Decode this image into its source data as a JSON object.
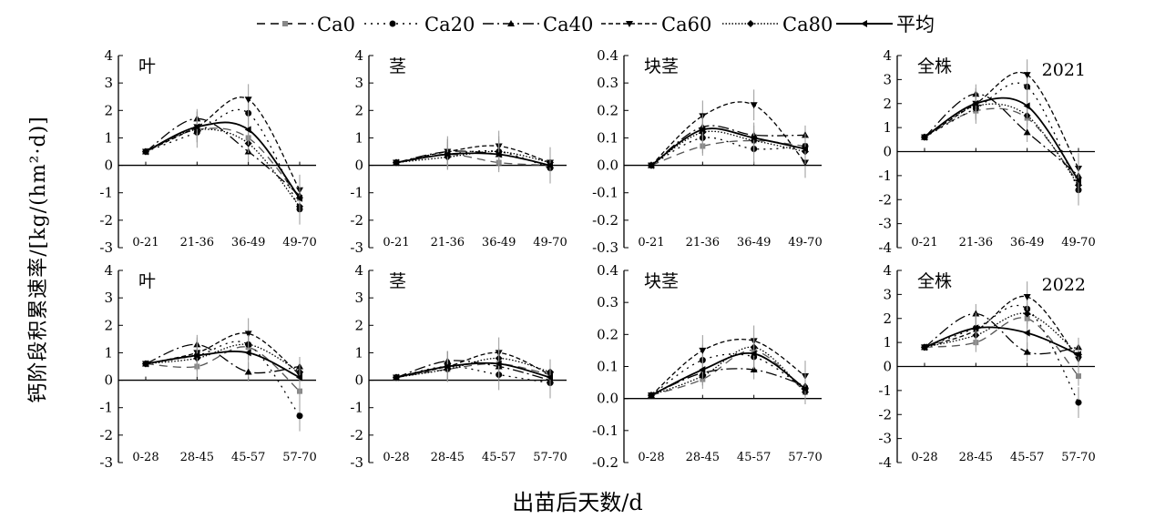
{
  "legend": {
    "items": [
      {
        "label": "Ca0",
        "dash": "9 6",
        "marker": "square",
        "color": "#888888"
      },
      {
        "label": "Ca20",
        "dash": "2 5",
        "marker": "circle",
        "color": "#000000"
      },
      {
        "label": "Ca40",
        "dash": "12 4 2 4",
        "marker": "triangle",
        "color": "#000000"
      },
      {
        "label": "Ca60",
        "dash": "5 3",
        "marker": "invtriangle",
        "color": "#000000"
      },
      {
        "label": "Ca80",
        "dash": "1.5 2",
        "marker": "diamond",
        "color": "#000000"
      },
      {
        "label": "平均",
        "dash": "",
        "marker": "lefttri",
        "color": "#000000"
      }
    ]
  },
  "ylabel": "钙阶段积累速率/[kg/(hm²·d)]",
  "xlabel": "出苗后天数/d",
  "chart_data": [
    {
      "type": "line",
      "year": "2021",
      "organ": "叶",
      "title": "叶",
      "ylim": [
        -3,
        4
      ],
      "yticks": [
        -3,
        -2,
        -1,
        0,
        1,
        2,
        3,
        4
      ],
      "categories": [
        "0-21",
        "21-36",
        "36-49",
        "49-70"
      ],
      "series": [
        {
          "name": "Ca0",
          "values": [
            0.5,
            1.3,
            1.0,
            -1.2
          ]
        },
        {
          "name": "Ca20",
          "values": [
            0.5,
            1.2,
            1.9,
            -1.6
          ]
        },
        {
          "name": "Ca40",
          "values": [
            0.5,
            1.7,
            0.5,
            -1.1
          ]
        },
        {
          "name": "Ca60",
          "values": [
            0.5,
            1.4,
            2.4,
            -0.9
          ]
        },
        {
          "name": "Ca80",
          "values": [
            0.5,
            1.3,
            0.8,
            -1.5
          ]
        },
        {
          "name": "平均",
          "values": [
            0.5,
            1.4,
            1.3,
            -1.2
          ]
        }
      ]
    },
    {
      "type": "line",
      "year": "2021",
      "organ": "茎",
      "title": "茎",
      "ylim": [
        -3,
        4
      ],
      "yticks": [
        -3,
        -2,
        -1,
        0,
        1,
        2,
        3,
        4
      ],
      "categories": [
        "0-21",
        "21-36",
        "36-49",
        "49-70"
      ],
      "series": [
        {
          "name": "Ca0",
          "values": [
            0.1,
            0.4,
            0.1,
            0.0
          ]
        },
        {
          "name": "Ca20",
          "values": [
            0.1,
            0.4,
            0.5,
            -0.1
          ]
        },
        {
          "name": "Ca40",
          "values": [
            0.1,
            0.5,
            0.4,
            0.0
          ]
        },
        {
          "name": "Ca60",
          "values": [
            0.1,
            0.5,
            0.7,
            0.1
          ]
        },
        {
          "name": "Ca80",
          "values": [
            0.1,
            0.3,
            0.5,
            0.1
          ]
        },
        {
          "name": "平均",
          "values": [
            0.1,
            0.4,
            0.4,
            0.0
          ]
        }
      ]
    },
    {
      "type": "line",
      "year": "2021",
      "organ": "块茎",
      "title": "块茎",
      "ylim": [
        -0.3,
        0.4
      ],
      "yticks": [
        -0.3,
        -0.2,
        -0.1,
        0.0,
        0.1,
        0.2,
        0.3,
        0.4
      ],
      "categories": [
        "0-21",
        "21-36",
        "36-49",
        "49-70"
      ],
      "series": [
        {
          "name": "Ca0",
          "values": [
            0.0,
            0.07,
            0.09,
            0.07
          ]
        },
        {
          "name": "Ca20",
          "values": [
            0.0,
            0.1,
            0.06,
            0.07
          ]
        },
        {
          "name": "Ca40",
          "values": [
            0.0,
            0.14,
            0.11,
            0.11
          ]
        },
        {
          "name": "Ca60",
          "values": [
            0.0,
            0.18,
            0.22,
            0.01
          ]
        },
        {
          "name": "Ca80",
          "values": [
            0.0,
            0.12,
            0.09,
            0.05
          ]
        },
        {
          "name": "平均",
          "values": [
            0.0,
            0.13,
            0.1,
            0.06
          ]
        }
      ]
    },
    {
      "type": "line",
      "year": "2021",
      "organ": "全株",
      "title": "全株",
      "ylim": [
        -4,
        4
      ],
      "yticks": [
        -4,
        -3,
        -2,
        -1,
        0,
        1,
        2,
        3,
        4
      ],
      "categories": [
        "0-21",
        "21-36",
        "36-49",
        "49-70"
      ],
      "series": [
        {
          "name": "Ca0",
          "values": [
            0.6,
            1.7,
            1.4,
            -1.3
          ]
        },
        {
          "name": "Ca20",
          "values": [
            0.6,
            1.8,
            2.7,
            -1.6
          ]
        },
        {
          "name": "Ca40",
          "values": [
            0.6,
            2.4,
            0.8,
            -1.0
          ]
        },
        {
          "name": "Ca60",
          "values": [
            0.6,
            2.0,
            3.2,
            -0.7
          ]
        },
        {
          "name": "Ca80",
          "values": [
            0.6,
            1.9,
            1.5,
            -1.4
          ]
        },
        {
          "name": "平均",
          "values": [
            0.6,
            2.0,
            1.9,
            -1.2
          ]
        }
      ],
      "annotation": "2021"
    },
    {
      "type": "line",
      "year": "2022",
      "organ": "叶",
      "title": "叶",
      "ylim": [
        -3,
        4
      ],
      "yticks": [
        -3,
        -2,
        -1,
        0,
        1,
        2,
        3,
        4
      ],
      "categories": [
        "0-28",
        "28-45",
        "45-57",
        "57-70"
      ],
      "series": [
        {
          "name": "Ca0",
          "values": [
            0.6,
            0.5,
            1.2,
            -0.4
          ]
        },
        {
          "name": "Ca20",
          "values": [
            0.6,
            0.9,
            1.3,
            -1.3
          ]
        },
        {
          "name": "Ca40",
          "values": [
            0.6,
            1.3,
            0.3,
            0.5
          ]
        },
        {
          "name": "Ca60",
          "values": [
            0.6,
            1.0,
            1.7,
            0.2
          ]
        },
        {
          "name": "Ca80",
          "values": [
            0.6,
            0.8,
            1.3,
            0.3
          ]
        },
        {
          "name": "平均",
          "values": [
            0.6,
            0.9,
            1.0,
            0.1
          ]
        }
      ]
    },
    {
      "type": "line",
      "year": "2022",
      "organ": "茎",
      "title": "茎",
      "ylim": [
        -3,
        4
      ],
      "yticks": [
        -3,
        -2,
        -1,
        0,
        1,
        2,
        3,
        4
      ],
      "categories": [
        "0-28",
        "28-45",
        "45-57",
        "57-70"
      ],
      "series": [
        {
          "name": "Ca0",
          "values": [
            0.1,
            0.4,
            0.6,
            0.2
          ]
        },
        {
          "name": "Ca20",
          "values": [
            0.1,
            0.5,
            0.2,
            -0.1
          ]
        },
        {
          "name": "Ca40",
          "values": [
            0.1,
            0.7,
            0.5,
            0.0
          ]
        },
        {
          "name": "Ca60",
          "values": [
            0.1,
            0.5,
            1.0,
            0.2
          ]
        },
        {
          "name": "Ca80",
          "values": [
            0.1,
            0.4,
            0.8,
            0.3
          ]
        },
        {
          "name": "平均",
          "values": [
            0.1,
            0.5,
            0.6,
            0.1
          ]
        }
      ]
    },
    {
      "type": "line",
      "year": "2022",
      "organ": "块茎",
      "title": "块茎",
      "ylim": [
        -0.2,
        0.4
      ],
      "yticks": [
        -0.2,
        -0.1,
        0.0,
        0.1,
        0.2,
        0.3,
        0.4
      ],
      "categories": [
        "0-28",
        "28-45",
        "45-57",
        "57-70"
      ],
      "series": [
        {
          "name": "Ca0",
          "values": [
            0.01,
            0.06,
            0.15,
            0.02
          ]
        },
        {
          "name": "Ca20",
          "values": [
            0.01,
            0.12,
            0.13,
            0.03
          ]
        },
        {
          "name": "Ca40",
          "values": [
            0.01,
            0.08,
            0.09,
            0.04
          ]
        },
        {
          "name": "Ca60",
          "values": [
            0.01,
            0.15,
            0.18,
            0.07
          ]
        },
        {
          "name": "Ca80",
          "values": [
            0.01,
            0.07,
            0.16,
            0.02
          ]
        },
        {
          "name": "平均",
          "values": [
            0.01,
            0.09,
            0.14,
            0.03
          ]
        }
      ]
    },
    {
      "type": "line",
      "year": "2022",
      "organ": "全株",
      "title": "全株",
      "ylim": [
        -4,
        4
      ],
      "yticks": [
        -4,
        -3,
        -2,
        -1,
        0,
        1,
        2,
        3,
        4
      ],
      "categories": [
        "0-28",
        "28-45",
        "45-57",
        "57-70"
      ],
      "series": [
        {
          "name": "Ca0",
          "values": [
            0.8,
            1.0,
            2.0,
            -0.4
          ]
        },
        {
          "name": "Ca20",
          "values": [
            0.8,
            1.6,
            2.4,
            -1.5
          ]
        },
        {
          "name": "Ca40",
          "values": [
            0.8,
            2.2,
            0.6,
            0.8
          ]
        },
        {
          "name": "Ca60",
          "values": [
            0.8,
            1.5,
            2.9,
            0.3
          ]
        },
        {
          "name": "Ca80",
          "values": [
            0.8,
            1.3,
            2.2,
            0.5
          ]
        },
        {
          "name": "平均",
          "values": [
            0.8,
            1.6,
            1.4,
            0.5
          ]
        }
      ],
      "annotation": "2022"
    }
  ]
}
